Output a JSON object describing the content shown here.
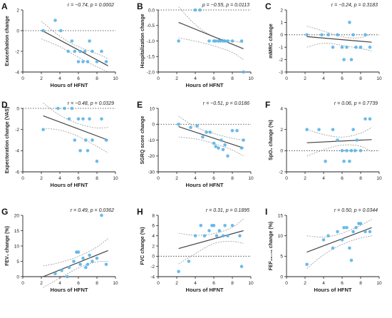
{
  "colors": {
    "point": "#5bb4e8",
    "fit": "#444444",
    "ci": "#9a9a9a",
    "axis": "#222222",
    "zero": "#333333"
  },
  "chart_data": [
    {
      "type": "scatter",
      "panel": "A",
      "stat": "r = −0.74,  p = 0.0002",
      "ylabel": "Exacerbation change",
      "xlabel": "Hours of HFNT",
      "xlim": [
        0,
        10
      ],
      "ylim": [
        -4,
        2
      ],
      "xticks": [
        0,
        2,
        4,
        6,
        8,
        10
      ],
      "yticks": [
        2,
        0,
        -2,
        -4
      ],
      "zero_line": true,
      "x": [
        2.2,
        3.5,
        4.1,
        4.9,
        5.3,
        5.6,
        6.0,
        6.2,
        6.5,
        6.7,
        7.0,
        7.2,
        7.5,
        8.0,
        8.5,
        9.0
      ],
      "y": [
        0,
        1,
        0,
        -2,
        -1,
        -2,
        -3,
        -2,
        -3,
        -2,
        -3,
        -1,
        -2,
        -3,
        -2,
        -3
      ],
      "fit": [
        [
          2,
          0.05
        ],
        [
          9.2,
          -3.4
        ]
      ],
      "ci_upper": [
        [
          2,
          0.9
        ],
        [
          4,
          -0.6
        ],
        [
          6,
          -1.6
        ],
        [
          8,
          -2.2
        ],
        [
          9.2,
          -2.7
        ]
      ],
      "ci_lower": [
        [
          2,
          -0.8
        ],
        [
          4,
          -1.5
        ],
        [
          6,
          -2.6
        ],
        [
          8,
          -3.5
        ],
        [
          9.2,
          -4.0
        ]
      ]
    },
    {
      "type": "scatter",
      "panel": "B",
      "stat": "ρ = −0.55,  p = 0.0113",
      "ylabel": "Hospitalization change",
      "xlabel": "Hours of HFNT",
      "xlim": [
        0,
        10
      ],
      "ylim": [
        -2.0,
        0.0
      ],
      "xticks": [
        0,
        2,
        4,
        6,
        8,
        10
      ],
      "yticks": [
        0.0,
        -0.5,
        -1.0,
        -1.5,
        -2.0
      ],
      "zero_line": true,
      "x": [
        2.2,
        4.0,
        4.5,
        5.5,
        6.0,
        6.2,
        6.5,
        6.7,
        7.0,
        7.2,
        7.5,
        8.0,
        9.0,
        9.2
      ],
      "y": [
        -1,
        0,
        0,
        -1,
        -1,
        -1,
        -1,
        -1,
        -1,
        -1,
        -1,
        -1,
        -1,
        -2
      ],
      "fit": [
        [
          2.2,
          -0.4
        ],
        [
          9.2,
          -1.25
        ]
      ],
      "ci_upper": [
        [
          2.2,
          0.1
        ],
        [
          4,
          -0.5
        ],
        [
          6,
          -0.9
        ],
        [
          8,
          -1.0
        ],
        [
          9.2,
          -1.05
        ]
      ],
      "ci_lower": [
        [
          2.2,
          -0.9
        ],
        [
          4,
          -1.0
        ],
        [
          6,
          -1.15
        ],
        [
          8,
          -1.35
        ],
        [
          9.2,
          -1.6
        ]
      ]
    },
    {
      "type": "scatter",
      "panel": "C",
      "stat": "r = −0.24,  p = 0.3183",
      "ylabel": "mMRC change",
      "xlabel": "",
      "xlim": [
        0,
        10
      ],
      "ylim": [
        -3,
        2
      ],
      "xticks": [
        0,
        2,
        4,
        6,
        8,
        10
      ],
      "yticks": [
        2,
        1,
        0,
        -1,
        -2,
        -3
      ],
      "zero_line": true,
      "x": [
        2.2,
        3.8,
        4.5,
        5.0,
        5.5,
        6.0,
        6.2,
        6.5,
        6.8,
        7.0,
        7.2,
        7.5,
        8.0,
        8.5,
        9.0
      ],
      "y": [
        0,
        0,
        0,
        -1,
        0,
        -1,
        -2,
        -1,
        1,
        -2,
        0,
        -1,
        -1,
        0,
        -1
      ],
      "fit": [
        [
          2.2,
          -0.15
        ],
        [
          9.2,
          -0.6
        ]
      ],
      "ci_upper": [
        [
          2.2,
          0.7
        ],
        [
          4,
          0.3
        ],
        [
          6,
          -0.2
        ],
        [
          8,
          -0.3
        ],
        [
          9.2,
          0.1
        ]
      ],
      "ci_lower": [
        [
          2.2,
          -1.0
        ],
        [
          4,
          -0.6
        ],
        [
          6,
          -0.85
        ],
        [
          8,
          -1.1
        ],
        [
          9.2,
          -1.3
        ]
      ]
    },
    {
      "type": "scatter",
      "panel": "D",
      "stat": "r = −0.48,  p = 0.0329",
      "ylabel": "Expectoration change (VAS)",
      "xlabel": "Hours of HFNT",
      "xlim": [
        0,
        10
      ],
      "ylim": [
        -6,
        0
      ],
      "xticks": [
        0,
        2,
        4,
        6,
        8,
        10
      ],
      "yticks": [
        0,
        -2,
        -4,
        -6
      ],
      "zero_line": true,
      "x": [
        2.2,
        3.8,
        4.5,
        5.0,
        5.3,
        5.6,
        6.0,
        6.2,
        6.5,
        6.8,
        7.0,
        7.2,
        7.5,
        8.0,
        8.5,
        9.0
      ],
      "y": [
        -2,
        0,
        0,
        -1,
        0,
        -3,
        -1,
        -4,
        -1,
        -3,
        -4,
        -1,
        -3,
        -5,
        -1,
        -3
      ],
      "fit": [
        [
          2.2,
          -0.7
        ],
        [
          9.2,
          -3.0
        ]
      ],
      "ci_upper": [
        [
          2.2,
          0.5
        ],
        [
          4,
          -0.7
        ],
        [
          6,
          -1.5
        ],
        [
          8,
          -1.9
        ],
        [
          9.2,
          -1.8
        ]
      ],
      "ci_lower": [
        [
          2.2,
          -1.9
        ],
        [
          4,
          -2.0
        ],
        [
          6,
          -2.6
        ],
        [
          8,
          -3.6
        ],
        [
          9.2,
          -4.2
        ]
      ]
    },
    {
      "type": "scatter",
      "panel": "E",
      "stat": "r = −0.51,  p = 0.0186",
      "ylabel": "SGRQ score change",
      "xlabel": "Hours of HFNT",
      "xlim": [
        0,
        10
      ],
      "ylim": [
        -30,
        10
      ],
      "xticks": [
        0,
        2,
        4,
        6,
        8,
        10
      ],
      "yticks": [
        10,
        0,
        -10,
        -20,
        -30
      ],
      "zero_line": true,
      "x": [
        2.2,
        3.5,
        4.2,
        4.8,
        5.2,
        5.6,
        6.0,
        6.2,
        6.5,
        6.8,
        7.0,
        7.2,
        7.5,
        8.0,
        8.5,
        9.0,
        9.2
      ],
      "y": [
        0,
        -2,
        -1,
        -8,
        -5,
        -5,
        -12,
        -14,
        -15,
        -10,
        -16,
        -13,
        -20,
        -4,
        -4,
        -15,
        -10
      ],
      "fit": [
        [
          2.2,
          -1.5
        ],
        [
          9.2,
          -15.0
        ]
      ],
      "ci_upper": [
        [
          2.2,
          5.0
        ],
        [
          4,
          -2.0
        ],
        [
          6,
          -6.0
        ],
        [
          8,
          -9.0
        ],
        [
          9.2,
          -10.0
        ]
      ],
      "ci_lower": [
        [
          2.2,
          -8.0
        ],
        [
          4,
          -9.0
        ],
        [
          6,
          -12.0
        ],
        [
          8,
          -16.0
        ],
        [
          9.2,
          -20.0
        ]
      ]
    },
    {
      "type": "scatter",
      "panel": "F",
      "stat": "r = 0.06,  p = 0.7739",
      "ylabel": "SpO₂ change (%)",
      "xlabel": "",
      "xlim": [
        0,
        10
      ],
      "ylim": [
        -2,
        4
      ],
      "xticks": [
        0,
        2,
        4,
        6,
        8,
        10
      ],
      "yticks": [
        4,
        2,
        0,
        -2
      ],
      "zero_line": true,
      "x": [
        2.2,
        3.5,
        4.2,
        5.0,
        5.5,
        6.0,
        6.2,
        6.5,
        6.8,
        7.0,
        7.2,
        7.4,
        7.6,
        8.0,
        8.5,
        9.0
      ],
      "y": [
        2,
        2,
        -1,
        2,
        1,
        0,
        -1,
        0,
        -1,
        0,
        2,
        0,
        1,
        0,
        3,
        3
      ],
      "fit": [
        [
          2.2,
          0.75
        ],
        [
          9.2,
          1.05
        ]
      ],
      "ci_upper": [
        [
          2.2,
          2.0
        ],
        [
          4,
          1.5
        ],
        [
          6,
          1.2
        ],
        [
          8,
          1.6
        ],
        [
          9.2,
          2.2
        ]
      ],
      "ci_lower": [
        [
          2.2,
          -0.5
        ],
        [
          4,
          0.1
        ],
        [
          6,
          0.6
        ],
        [
          8,
          0.5
        ],
        [
          9.2,
          -0.1
        ]
      ]
    },
    {
      "type": "scatter",
      "panel": "G",
      "stat": "r = 0.49,  p = 0.0362",
      "ylabel": "FEV₁ change  (%)",
      "xlabel": "Hours of HFNT",
      "xlim": [
        0,
        10
      ],
      "ylim": [
        0,
        20
      ],
      "xticks": [
        0,
        2,
        4,
        6,
        8,
        10
      ],
      "yticks": [
        20,
        15,
        10,
        5,
        0
      ],
      "zero_line": false,
      "x": [
        3.5,
        4.2,
        4.8,
        5.0,
        5.5,
        5.8,
        6.0,
        6.2,
        6.5,
        6.8,
        7.0,
        7.2,
        7.5,
        8.0,
        8.5,
        9.0
      ],
      "y": [
        1,
        2,
        0,
        3,
        5,
        8,
        8,
        4,
        6,
        3,
        4,
        7,
        5,
        6,
        20,
        4
      ],
      "fit": [
        [
          2.2,
          0.0
        ],
        [
          9.2,
          8.5
        ]
      ],
      "ci_upper": [
        [
          2.2,
          3.5
        ],
        [
          4,
          4.5
        ],
        [
          6,
          6.5
        ],
        [
          8,
          9.5
        ],
        [
          9.2,
          12.5
        ]
      ],
      "ci_lower": [
        [
          2.2,
          -3.5
        ],
        [
          4,
          -0.5
        ],
        [
          6,
          3.0
        ],
        [
          8,
          5.0
        ],
        [
          9.2,
          5.0
        ]
      ]
    },
    {
      "type": "scatter",
      "panel": "H",
      "stat": "r = 0.31,  p = 0.1895",
      "ylabel": "FVC change (%)",
      "xlabel": "Hours of HFNT",
      "xlim": [
        0,
        10
      ],
      "ylim": [
        -4,
        8
      ],
      "xticks": [
        0,
        2,
        4,
        6,
        8,
        10
      ],
      "yticks": [
        8,
        6,
        4,
        2,
        0,
        -2,
        -4
      ],
      "zero_line": true,
      "x": [
        2.2,
        3.3,
        4.0,
        4.6,
        5.0,
        5.5,
        5.8,
        6.0,
        6.3,
        6.6,
        7.0,
        7.2,
        7.5,
        8.0,
        8.8,
        9.0
      ],
      "y": [
        -3,
        -1,
        4,
        6,
        4,
        5,
        6,
        6,
        4,
        5,
        4,
        6,
        4,
        6,
        4,
        -2
      ],
      "fit": [
        [
          2.2,
          1.5
        ],
        [
          9.2,
          5.0
        ]
      ],
      "ci_upper": [
        [
          2.2,
          4.5
        ],
        [
          4,
          4.0
        ],
        [
          6,
          4.3
        ],
        [
          8,
          5.5
        ],
        [
          9.2,
          7.3
        ]
      ],
      "ci_lower": [
        [
          2.2,
          -1.5
        ],
        [
          4,
          0.5
        ],
        [
          6,
          2.7
        ],
        [
          8,
          3.0
        ],
        [
          9.2,
          2.5
        ]
      ]
    },
    {
      "type": "scatter",
      "panel": "I",
      "stat": "r = 0.50,  p = 0.0344",
      "ylabel": "FEF₂₅₋₇₅ change (%)",
      "xlabel": "Hours of HFNT",
      "xlim": [
        0,
        10
      ],
      "ylim": [
        0,
        15
      ],
      "xticks": [
        0,
        2,
        4,
        6,
        8,
        10
      ],
      "yticks": [
        15,
        10,
        5,
        0
      ],
      "zero_line": false,
      "x": [
        2.2,
        4.0,
        4.5,
        5.0,
        5.5,
        6.0,
        6.2,
        6.5,
        6.8,
        7.0,
        7.2,
        7.5,
        7.8,
        8.0,
        8.5,
        9.0
      ],
      "y": [
        3,
        9,
        10,
        7,
        11,
        9,
        12,
        12,
        7,
        4,
        11,
        12,
        13,
        13,
        11,
        11
      ],
      "fit": [
        [
          2.2,
          6.0
        ],
        [
          9.2,
          12.0
        ]
      ],
      "ci_upper": [
        [
          2.2,
          10.0
        ],
        [
          4,
          9.5
        ],
        [
          6,
          10.5
        ],
        [
          8,
          12.5
        ],
        [
          9.2,
          14.0
        ]
      ],
      "ci_lower": [
        [
          2.2,
          2.0
        ],
        [
          4,
          5.5
        ],
        [
          6,
          8.0
        ],
        [
          8,
          9.5
        ],
        [
          9.2,
          10.0
        ]
      ]
    }
  ]
}
